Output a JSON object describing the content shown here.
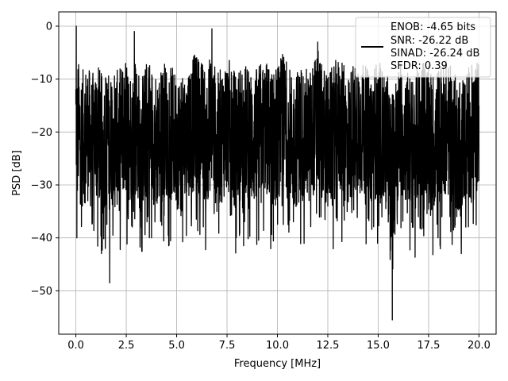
{
  "chart_data": {
    "type": "line",
    "title": "",
    "xlabel": "Frequency [MHz]",
    "ylabel": "PSD [dB]",
    "xlim": [
      -0.85,
      20.85
    ],
    "ylim": [
      -58.2,
      2.7
    ],
    "xticks": [
      0.0,
      2.5,
      5.0,
      7.5,
      10.0,
      12.5,
      15.0,
      17.5,
      20.0
    ],
    "xtick_labels": [
      "0.0",
      "2.5",
      "5.0",
      "7.5",
      "10.0",
      "12.5",
      "15.0",
      "17.5",
      "20.0"
    ],
    "yticks": [
      0,
      -10,
      -20,
      -30,
      -40,
      -50
    ],
    "ytick_labels": [
      "0",
      "−10",
      "−20",
      "−30",
      "−40",
      "−50"
    ],
    "grid": true,
    "legend_position": "top-right",
    "legend_lines": [
      "ENOB: -4.65 bits",
      "SNR: -26.22 dB",
      "SINAD: -26.24 dB",
      "SFDR: 0.39"
    ],
    "line_color": "#000000",
    "series": [
      {
        "description": "dense noisy PSD trace, values approximated",
        "x": [
          0.0,
          0.02,
          0.05,
          0.1,
          0.3,
          0.55,
          0.8,
          1.0,
          1.3,
          1.6,
          1.68,
          1.8,
          2.1,
          2.4,
          2.8,
          2.9,
          3.2,
          3.6,
          4.0,
          4.4,
          4.9,
          5.3,
          5.6,
          6.0,
          6.5,
          6.75,
          7.0,
          7.5,
          7.9,
          8.3,
          8.8,
          9.3,
          9.8,
          10.3,
          10.8,
          11.2,
          11.6,
          12.0,
          12.5,
          13.0,
          13.5,
          14.0,
          14.5,
          15.0,
          15.5,
          15.7,
          16.1,
          16.7,
          17.2,
          17.8,
          18.3,
          18.9,
          19.5,
          20.0
        ],
        "y": [
          -12,
          0,
          -40,
          -14,
          -30,
          -18,
          -37,
          -11,
          -35,
          -22,
          -48.5,
          -14,
          -31,
          -12,
          -26,
          -1,
          -38,
          -10,
          -33,
          -16,
          -28,
          -37,
          -14,
          -7,
          -25,
          -0.5,
          -35,
          -9,
          -30,
          -17,
          -31,
          -12,
          -28,
          -7,
          -34,
          -19,
          -27,
          -3,
          -34,
          -11,
          -30,
          -9,
          -28,
          -15,
          -37,
          -55.5,
          -13,
          -38,
          -12,
          -33,
          -11,
          -36,
          -22,
          -15
        ]
      }
    ]
  }
}
